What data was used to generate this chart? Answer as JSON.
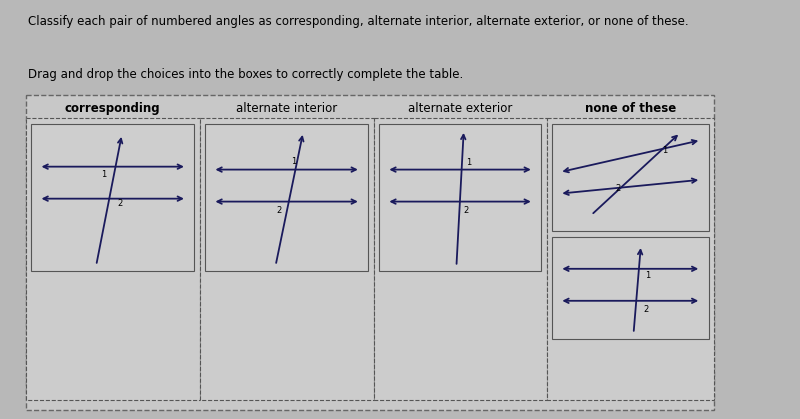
{
  "title_text": "Classify each pair of numbered angles as corresponding, alternate interior, alternate exterior, or none of these.",
  "subtitle_text": "Drag and drop the choices into the boxes to correctly complete the table.",
  "bg_color": "#b8b8b8",
  "outer_box_color": "#c0c0c0",
  "inner_box_color": "#d4d4d4",
  "line_color": "#1a1a5c",
  "categories": [
    "corresponding",
    "alternate interior",
    "alternate exterior",
    "none of these"
  ],
  "title_fontsize": 8.5,
  "subtitle_fontsize": 8.5,
  "cat_fontsize": 8.5
}
